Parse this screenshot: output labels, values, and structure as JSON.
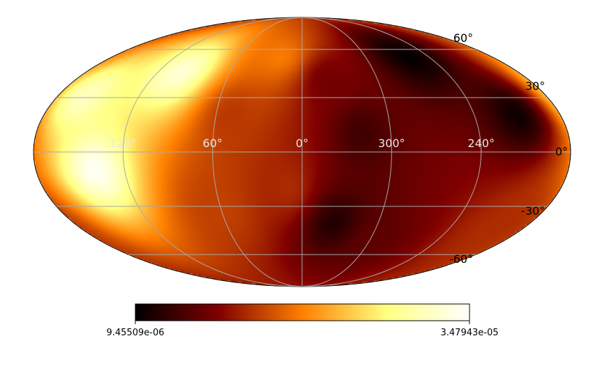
{
  "chart_data": {
    "type": "heatmap",
    "projection": "mollweide",
    "colormap": "afmhot",
    "graticule": true,
    "lat_ticks": [
      {
        "value": 60,
        "label": "60°"
      },
      {
        "value": 30,
        "label": "30°"
      },
      {
        "value": 0,
        "label": "0°"
      },
      {
        "value": -30,
        "label": "-30°"
      },
      {
        "value": -60,
        "label": "-60°"
      }
    ],
    "lon_ticks": [
      {
        "value": 120,
        "label": "120°"
      },
      {
        "value": 60,
        "label": "60°"
      },
      {
        "value": 0,
        "label": "0°"
      },
      {
        "value": 300,
        "label": "300°"
      },
      {
        "value": 240,
        "label": "240°"
      }
    ],
    "colorbar": {
      "min": 9.45509e-06,
      "max": 3.47943e-05,
      "min_label": "9.45509e-06",
      "max_label": "3.47943e-05",
      "orientation": "horizontal",
      "position": "bottom"
    },
    "hotspots": [
      {
        "lon": 140,
        "lat": -10,
        "value": 3.45e-05
      },
      {
        "lon": 100,
        "lat": 45,
        "value": 3.3e-05
      },
      {
        "lon": 160,
        "lat": 30,
        "value": 3.2e-05
      },
      {
        "lon": 50,
        "lat": 20,
        "value": 1.85e-05
      },
      {
        "lon": 60,
        "lat": -30,
        "value": 1.9e-05
      },
      {
        "lon": 20,
        "lat": 55,
        "value": 2.2e-05
      },
      {
        "lon": 10,
        "lat": -20,
        "value": 1.8e-05
      },
      {
        "lon": 260,
        "lat": 55,
        "value": 9.6e-06
      },
      {
        "lon": 210,
        "lat": 20,
        "value": 1e-05
      },
      {
        "lon": 320,
        "lat": 10,
        "value": 1.25e-05
      },
      {
        "lon": 335,
        "lat": -40,
        "value": 1.1e-05
      },
      {
        "lon": 300,
        "lat": -50,
        "value": 1.4e-05
      },
      {
        "lon": 200,
        "lat": -40,
        "value": 1.8e-05
      },
      {
        "lon": 340,
        "lat": 40,
        "value": 1.5e-05
      }
    ],
    "background_value": 1.7e-05
  }
}
